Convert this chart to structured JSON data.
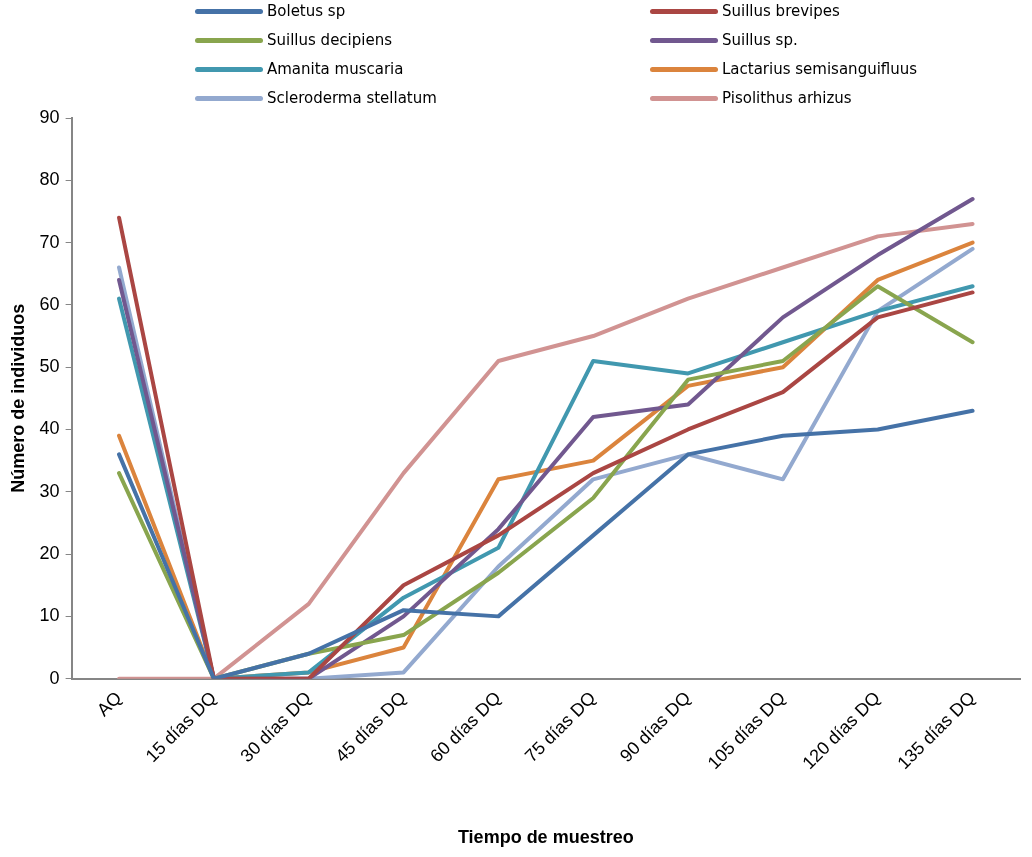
{
  "chart_data": {
    "type": "line",
    "xlabel": "Tiempo de muestreo",
    "ylabel": "Número de individuos",
    "categories": [
      "AQ",
      "15 días DQ",
      "30 días DQ",
      "45 días DQ",
      "60 días DQ",
      "75 días DQ",
      "90 días DQ",
      "105 días DQ",
      "120 días DQ",
      "135 días DQ"
    ],
    "series": [
      {
        "name": "Boletus sp",
        "color": "#4572a7",
        "values": [
          36,
          0,
          4,
          11,
          10,
          23,
          36,
          39,
          40,
          43
        ]
      },
      {
        "name": "Suillus brevipes",
        "color": "#aa4643",
        "values": [
          74,
          0,
          0,
          15,
          23,
          33,
          40,
          46,
          58,
          62
        ]
      },
      {
        "name": "Suillus decipiens",
        "color": "#89a54e",
        "values": [
          33,
          0,
          4,
          7,
          17,
          29,
          48,
          51,
          63,
          54
        ]
      },
      {
        "name": "Suillus sp.",
        "color": "#71588f",
        "values": [
          64,
          0,
          0,
          10,
          24,
          42,
          44,
          58,
          68,
          77
        ]
      },
      {
        "name": "Amanita muscaria",
        "color": "#4198af",
        "values": [
          61,
          0,
          1,
          13,
          21,
          51,
          49,
          54,
          59,
          63
        ]
      },
      {
        "name": "Lactarius semisanguifluus",
        "color": "#db843d",
        "values": [
          39,
          0,
          1,
          5,
          32,
          35,
          47,
          50,
          64,
          70
        ]
      },
      {
        "name": "Scleroderma stellatum",
        "color": "#93a9cf",
        "values": [
          66,
          0,
          0,
          1,
          18,
          32,
          36,
          32,
          59,
          69
        ]
      },
      {
        "name": "Pisolithus arhizus",
        "color": "#d19392",
        "values": [
          0,
          0,
          12,
          33,
          51,
          55,
          61,
          66,
          71,
          73
        ]
      }
    ],
    "ylim": [
      0,
      90
    ],
    "yticks": [
      0,
      10,
      20,
      30,
      40,
      50,
      60,
      70,
      80,
      90
    ],
    "grid": false,
    "legend": "top",
    "marker": "none",
    "line_style": "solid"
  }
}
